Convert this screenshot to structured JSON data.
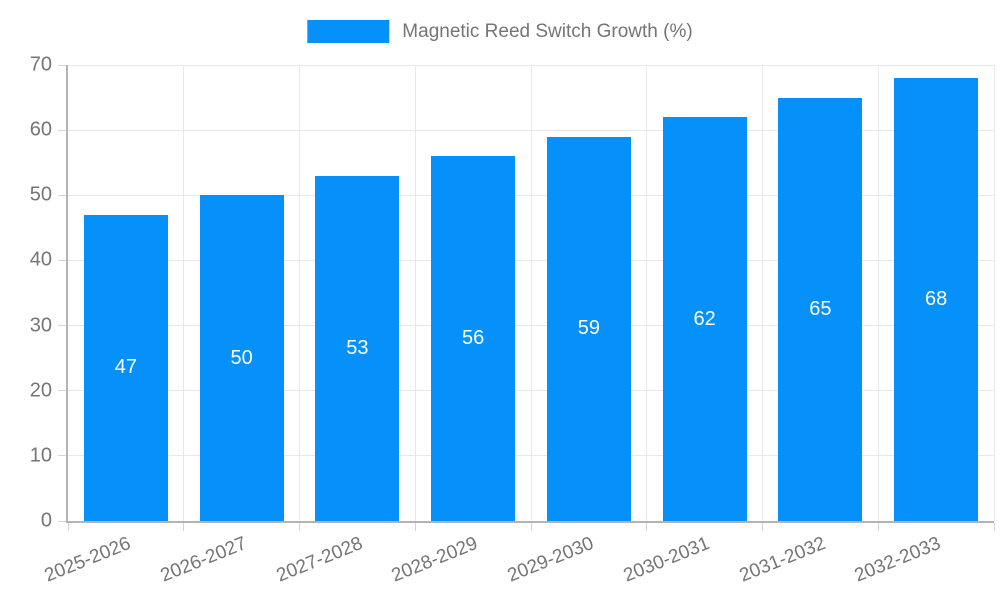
{
  "legend": {
    "label": "Magnetic Reed Switch Growth (%)"
  },
  "chart_data": {
    "type": "bar",
    "title": "Magnetic Reed Switch Growth (%)",
    "categories": [
      "2025-2026",
      "2026-2027",
      "2027-2028",
      "2028-2029",
      "2029-2030",
      "2030-2031",
      "2031-2032",
      "2032-2033"
    ],
    "values": [
      47,
      50,
      53,
      56,
      59,
      62,
      65,
      68
    ],
    "xlabel": "",
    "ylabel": "",
    "ylim": [
      0,
      70
    ],
    "yticks": [
      0,
      10,
      20,
      30,
      40,
      50,
      60,
      70
    ],
    "grid": true,
    "legend_position": "top-center",
    "value_labels": "inside-center",
    "colors": {
      "bar": "#0691fa",
      "value_label": "#ffffff",
      "axis_text": "#757575",
      "grid_line": "#e8e8e8",
      "axis_line": "#b3b3b3",
      "tick": "#d4d4d4"
    }
  }
}
